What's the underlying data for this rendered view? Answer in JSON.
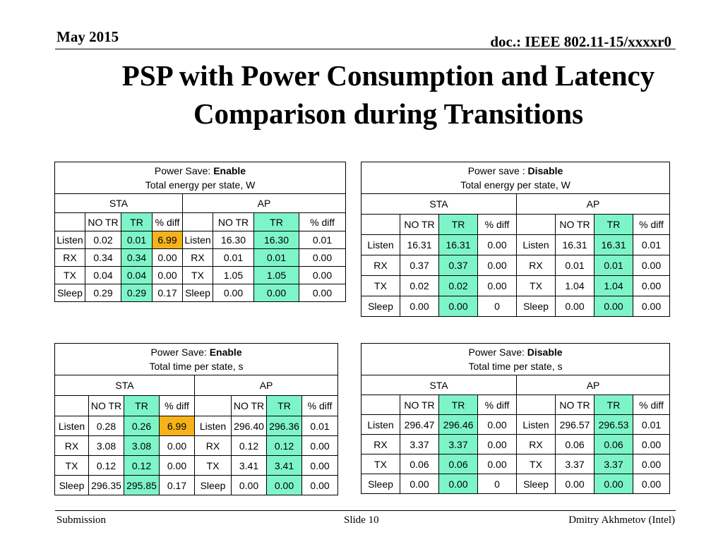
{
  "header": {
    "date": "May 2015",
    "doc_id": "doc.: IEEE 802.11-15/xxxxr0"
  },
  "title": {
    "line1": "PSP with Power Consumption and Latency",
    "line2": "Comparison during Transitions"
  },
  "cols": {
    "sta": "STA",
    "ap": "AP",
    "no_tr": "NO TR",
    "tr": "TR",
    "pct_diff": "% diff"
  },
  "tables": [
    {
      "caption_prefix": "Power Save: ",
      "caption_mode": "Enable",
      "caption_line2": "Total energy per state, W",
      "rows": [
        [
          "Listen",
          "0.02",
          "0.01",
          "6.99",
          "Listen",
          "16.30",
          "16.30",
          "0.01"
        ],
        [
          "RX",
          "0.34",
          "0.34",
          "0.00",
          "RX",
          "0.01",
          "0.01",
          "0.00"
        ],
        [
          "TX",
          "0.04",
          "0.04",
          "0.00",
          "TX",
          "1.05",
          "1.05",
          "0.00"
        ],
        [
          "Sleep",
          "0.29",
          "0.29",
          "0.17",
          "Sleep",
          "0.00",
          "0.00",
          "0.00"
        ]
      ]
    },
    {
      "caption_prefix": "Power save : ",
      "caption_mode": "Disable",
      "caption_line2": "Total energy per state, W",
      "rows": [
        [
          "Listen",
          "16.31",
          "16.31",
          "0.00",
          "Listen",
          "16.31",
          "16.31",
          "0.01"
        ],
        [
          "RX",
          "0.37",
          "0.37",
          "0.00",
          "RX",
          "0.01",
          "0.01",
          "0.00"
        ],
        [
          "TX",
          "0.02",
          "0.02",
          "0.00",
          "TX",
          "1.04",
          "1.04",
          "0.00"
        ],
        [
          "Sleep",
          "0.00",
          "0.00",
          "0",
          "Sleep",
          "0.00",
          "0.00",
          "0.00"
        ]
      ]
    },
    {
      "caption_prefix": "Power Save: ",
      "caption_mode": "Enable",
      "caption_line2": "Total time per state, s",
      "rows": [
        [
          "Listen",
          "0.28",
          "0.26",
          "6.99",
          "Listen",
          "296.40",
          "296.36",
          "0.01"
        ],
        [
          "RX",
          "3.08",
          "3.08",
          "0.00",
          "RX",
          "0.12",
          "0.12",
          "0.00"
        ],
        [
          "TX",
          "0.12",
          "0.12",
          "0.00",
          "TX",
          "3.41",
          "3.41",
          "0.00"
        ],
        [
          "Sleep",
          "296.35",
          "295.85",
          "0.17",
          "Sleep",
          "0.00",
          "0.00",
          "0.00"
        ]
      ]
    },
    {
      "caption_prefix": "Power Save: ",
      "caption_mode": "Disable",
      "caption_line2": "Total time per state, s",
      "rows": [
        [
          "Listen",
          "296.47",
          "296.46",
          "0.00",
          "Listen",
          "296.57",
          "296.53",
          "0.01"
        ],
        [
          "RX",
          "3.37",
          "3.37",
          "0.00",
          "RX",
          "0.06",
          "0.06",
          "0.00"
        ],
        [
          "TX",
          "0.06",
          "0.06",
          "0.00",
          "TX",
          "3.37",
          "3.37",
          "0.00"
        ],
        [
          "Sleep",
          "0.00",
          "0.00",
          "0",
          "Sleep",
          "0.00",
          "0.00",
          "0.00"
        ]
      ]
    }
  ],
  "footer": {
    "left": "Submission",
    "center": "Slide 10",
    "right": "Dmitry Akhmetov (Intel)"
  }
}
